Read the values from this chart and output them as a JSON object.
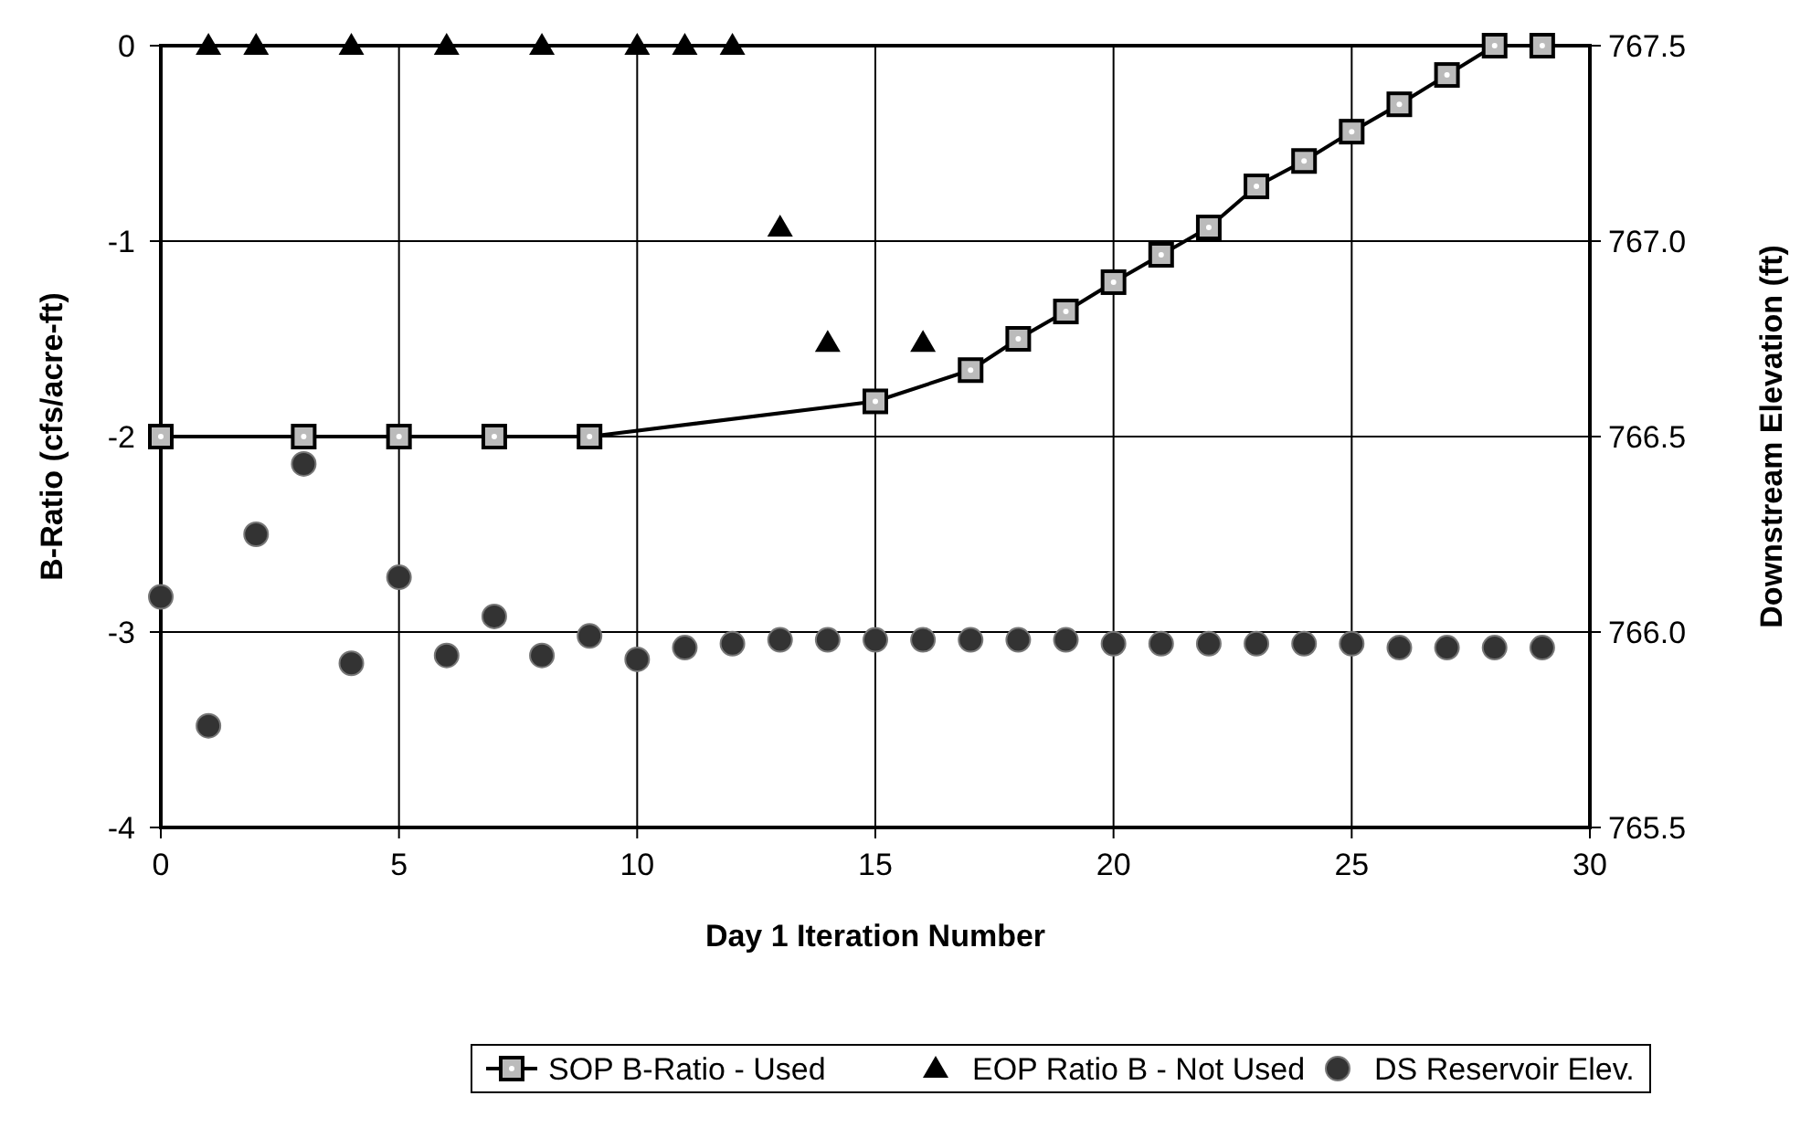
{
  "chart_data": {
    "type": "line",
    "xlabel": "Day 1 Iteration Number",
    "ylabel": "B-Ratio (cfs/acre-ft)",
    "y2label": "Downstream Elevation (ft)",
    "xlim": [
      0,
      30
    ],
    "xticks": [
      0,
      5,
      10,
      15,
      20,
      25,
      30
    ],
    "ylim": [
      -4,
      0
    ],
    "yticks": [
      -4,
      -3,
      -2,
      -1,
      0
    ],
    "y2lim": [
      765.5,
      767.5
    ],
    "y2ticks": [
      765.5,
      {
        "value": 766,
        "label": "766.0"
      },
      766.5,
      {
        "value": 767,
        "label": "767.0"
      },
      767.5
    ],
    "grid": true,
    "legend": "bottom",
    "series": [
      {
        "name": "SOP B-Ratio - Used",
        "marker": "square",
        "color": "#000000",
        "x": [
          0,
          3,
          5,
          7,
          9,
          15,
          17,
          18,
          19,
          20,
          21,
          22,
          23,
          24,
          25,
          26,
          27,
          28,
          29
        ],
        "values": [
          -2,
          -2,
          -2,
          -2,
          -2,
          -1.82,
          -1.66,
          -1.5,
          -1.36,
          -1.21,
          -1.07,
          -0.93,
          -0.72,
          -0.59,
          -0.44,
          -0.3,
          -0.15,
          0,
          0
        ]
      },
      {
        "name": "EOP Ratio B - Not Used",
        "type": "scatter",
        "marker": "triangle",
        "color": "#000000",
        "x": [
          1,
          2,
          4,
          6,
          8,
          10,
          11,
          12,
          13,
          14,
          16
        ],
        "values": [
          0,
          0,
          0,
          0,
          0,
          0,
          0,
          0,
          -0.93,
          -1.52,
          -1.52
        ]
      },
      {
        "name": "DS Reservoir Elev.",
        "type": "scatter",
        "marker": "circle",
        "axis": "y2",
        "color": "#333333",
        "x": [
          0,
          1,
          2,
          3,
          4,
          5,
          6,
          7,
          8,
          9,
          10,
          11,
          12,
          13,
          14,
          15,
          16,
          17,
          18,
          19,
          20,
          21,
          22,
          23,
          24,
          25,
          26,
          27,
          28,
          29
        ],
        "values": [
          766.09,
          765.76,
          766.25,
          766.43,
          765.92,
          766.14,
          765.94,
          766.04,
          765.94,
          765.99,
          765.93,
          765.96,
          765.97,
          765.98,
          765.98,
          765.98,
          765.98,
          765.98,
          765.98,
          765.98,
          765.97,
          765.97,
          765.97,
          765.97,
          765.97,
          765.97,
          765.96,
          765.96,
          765.96,
          765.96
        ]
      }
    ]
  }
}
